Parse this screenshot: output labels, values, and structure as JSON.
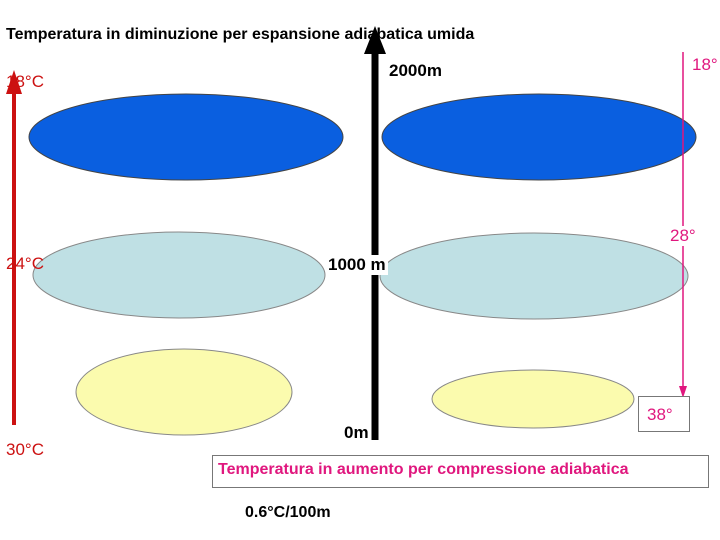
{
  "title_top": "Temperatura in diminuzione per espansione adiabatica umida",
  "title_bottom": "Temperatura in aumento per compressione adiabatica",
  "altitudes": {
    "high": "2000m",
    "mid": "1000 m",
    "low": "0m"
  },
  "left_temps": {
    "high": "18°C",
    "mid": "24°C",
    "low": "30°C"
  },
  "right_temps": {
    "high": "18°",
    "mid": "28°",
    "low": "38°"
  },
  "lapse_rate": "0.6°C/100m",
  "colors": {
    "rising_arrow": "#cc1111",
    "descending_arrow": "#e0177e",
    "altitude_arrow": "#000000",
    "cloud_high": "#0a5fe0",
    "cloud_mid": "#bfe0e4",
    "cloud_low": "#fbfbae",
    "outline": "#555555"
  }
}
